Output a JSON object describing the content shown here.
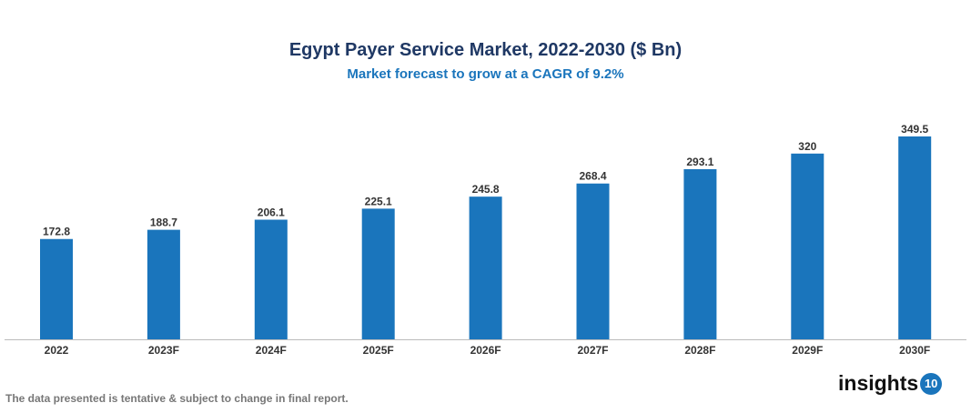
{
  "chart_data": {
    "type": "bar",
    "title": "Egypt Payer Service Market, 2022-2030 ($ Bn)",
    "subtitle": "Market forecast to grow at a CAGR of 9.2%",
    "categories": [
      "2022",
      "2023F",
      "2024F",
      "2025F",
      "2026F",
      "2027F",
      "2028F",
      "2029F",
      "2030F"
    ],
    "values": [
      172.8,
      188.7,
      206.1,
      225.1,
      245.8,
      268.4,
      293.1,
      320,
      349.5
    ],
    "value_labels": [
      "172.8",
      "188.7",
      "206.1",
      "225.1",
      "245.8",
      "268.4",
      "293.1",
      "320",
      "349.5"
    ],
    "xlabel": "",
    "ylabel": "",
    "ylim": [
      0,
      350
    ],
    "grid": false,
    "bar_color": "#1a75bc"
  },
  "footer": {
    "note": "The data presented is tentative & subject to change in final report.",
    "logo_text": "insights",
    "logo_badge": "10"
  }
}
